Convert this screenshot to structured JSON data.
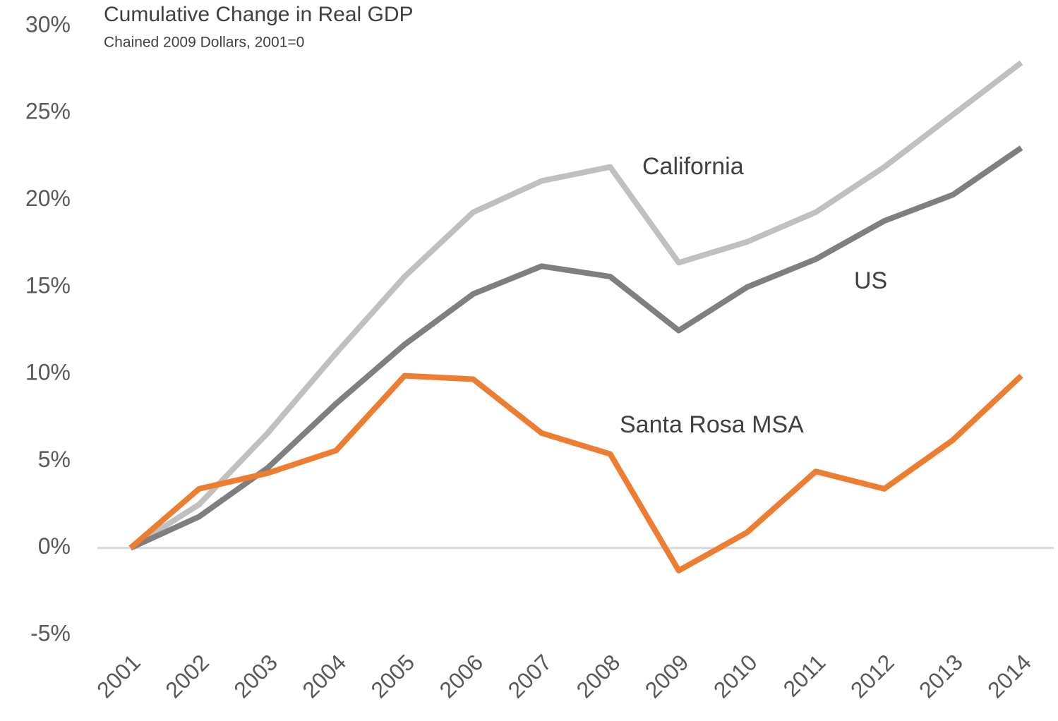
{
  "chart_data": {
    "type": "line",
    "title": "Cumulative Change in Real GDP",
    "subtitle": "Chained 2009 Dollars, 2001=0",
    "categories": [
      "2001",
      "2002",
      "2003",
      "2004",
      "2005",
      "2006",
      "2007",
      "2008",
      "2009",
      "2010",
      "2011",
      "2012",
      "2013",
      "2014"
    ],
    "series": [
      {
        "name": "California",
        "color": "#c0c0c0",
        "values": [
          0,
          2.5,
          6.6,
          11.2,
          15.6,
          19.3,
          21.1,
          21.9,
          16.4,
          17.6,
          19.3,
          21.9,
          24.9,
          27.9
        ]
      },
      {
        "name": "US",
        "color": "#7f7f7f",
        "values": [
          0,
          1.8,
          4.6,
          8.3,
          11.7,
          14.6,
          16.2,
          15.6,
          12.5,
          15.0,
          16.6,
          18.8,
          20.3,
          23.0
        ]
      },
      {
        "name": "Santa Rosa MSA",
        "color": "#ed7d31",
        "values": [
          0,
          3.4,
          4.3,
          5.6,
          9.9,
          9.7,
          6.6,
          5.4,
          -1.3,
          0.9,
          4.4,
          3.4,
          6.2,
          9.9
        ]
      }
    ],
    "ylim": [
      -5,
      30
    ],
    "yticks": [
      {
        "value": -5,
        "label": "-5%"
      },
      {
        "value": 0,
        "label": "0%"
      },
      {
        "value": 5,
        "label": "5%"
      },
      {
        "value": 10,
        "label": "10%"
      },
      {
        "value": 15,
        "label": "15%"
      },
      {
        "value": 20,
        "label": "20%"
      },
      {
        "value": 25,
        "label": "25%"
      },
      {
        "value": 30,
        "label": "30%"
      }
    ],
    "grid": false
  }
}
